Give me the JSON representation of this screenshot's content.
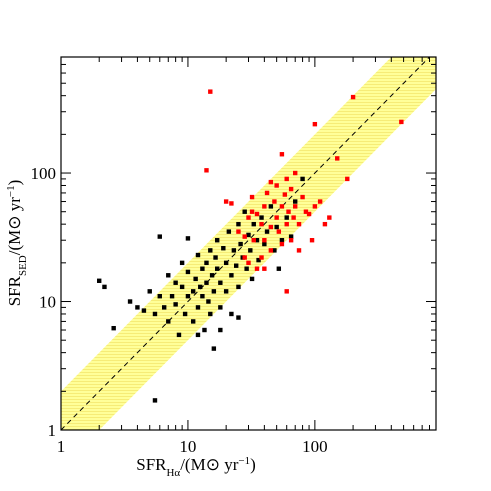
{
  "chart_data": {
    "type": "scatter",
    "xlabel": [
      "SFR",
      "Hα",
      "/(M⊙ yr",
      "−1",
      ")"
    ],
    "ylabel": [
      "SFR",
      "SED",
      "/(M⊙ yr",
      "−1",
      ")"
    ],
    "xscale": "log",
    "yscale": "log",
    "xlim": [
      1,
      900
    ],
    "ylim": [
      1,
      800
    ],
    "xticks": [
      1,
      10,
      100
    ],
    "yticks": [
      1,
      10,
      100
    ],
    "xticks_minor": [
      2,
      3,
      4,
      5,
      6,
      7,
      8,
      9,
      20,
      30,
      40,
      50,
      60,
      70,
      80,
      90,
      200,
      300,
      400,
      500,
      600,
      700,
      800
    ],
    "yticks_minor": [
      2,
      3,
      4,
      5,
      6,
      7,
      8,
      9,
      20,
      30,
      40,
      50,
      60,
      70,
      80,
      90,
      200,
      300,
      400,
      500,
      600,
      700
    ],
    "band_factor": 2,
    "band_color": "#ffff99",
    "one_to_one_line": true,
    "series": [
      {
        "color": "#000000",
        "x": [
          2.0,
          2.2,
          2.6,
          3.5,
          4,
          4.5,
          5,
          5.5,
          5.5,
          6,
          6,
          6.5,
          7,
          7,
          7.5,
          8,
          8,
          8.5,
          9,
          9,
          9.5,
          10,
          10,
          10,
          11,
          11,
          11.5,
          12,
          12,
          12.5,
          13,
          13,
          13.5,
          14,
          14,
          14.5,
          15,
          15,
          15.5,
          16,
          16,
          16.5,
          17,
          17,
          18,
          18,
          19,
          20,
          20,
          21,
          22,
          22,
          23,
          24,
          25,
          25,
          26,
          27,
          28,
          29,
          30,
          31,
          32,
          33,
          35,
          36,
          38,
          40,
          42,
          45,
          48,
          50,
          52,
          55,
          60,
          65,
          70,
          80,
          12,
          18,
          25
        ],
        "values": [
          14.5,
          13,
          6.2,
          10,
          9,
          8.5,
          12,
          1.7,
          8,
          32,
          11,
          9,
          16,
          7,
          11,
          14,
          9.5,
          5.5,
          13,
          20,
          8,
          11,
          17,
          31,
          12,
          7,
          15,
          9,
          23,
          13,
          18,
          11,
          6,
          20,
          14,
          10,
          25,
          8,
          16,
          4.3,
          12,
          22,
          18,
          30,
          14,
          9,
          26,
          20,
          12,
          35,
          16,
          8,
          25,
          19,
          40,
          13,
          28,
          22,
          50,
          18,
          33,
          25,
          15,
          40,
          30,
          21,
          45,
          28,
          35,
          55,
          25,
          38,
          18,
          30,
          45,
          32,
          60,
          90,
          5.5,
          6,
          7.5
        ]
      },
      {
        "color": "#ff0000",
        "x": [
          15,
          14,
          20,
          22,
          25,
          28,
          30,
          30,
          32,
          33,
          35,
          35,
          38,
          38,
          40,
          40,
          42,
          45,
          45,
          48,
          50,
          50,
          52,
          55,
          55,
          58,
          60,
          60,
          62,
          65,
          65,
          68,
          70,
          70,
          75,
          80,
          85,
          90,
          95,
          100,
          100,
          110,
          120,
          130,
          150,
          180,
          200,
          480,
          60,
          75,
          45,
          55,
          28,
          32,
          40
        ],
        "values": [
          430,
          105,
          60,
          58,
          35,
          22,
          45,
          20,
          65,
          30,
          48,
          18,
          40,
          22,
          55,
          30,
          70,
          38,
          25,
          60,
          45,
          80,
          35,
          55,
          28,
          68,
          40,
          90,
          50,
          30,
          75,
          45,
          100,
          55,
          40,
          65,
          50,
          48,
          30,
          240,
          55,
          60,
          40,
          45,
          130,
          90,
          390,
          250,
          12,
          25,
          85,
          140,
          32,
          50,
          18
        ]
      }
    ]
  }
}
